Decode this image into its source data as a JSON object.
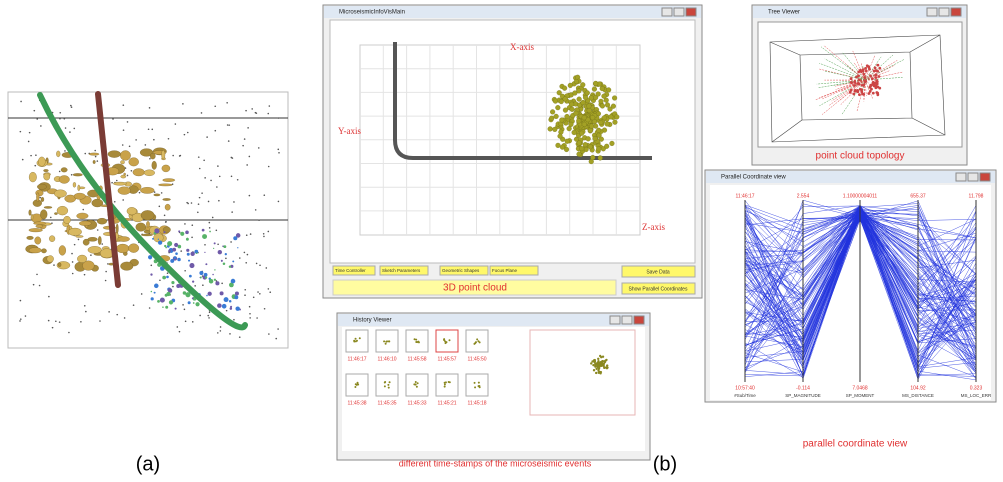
{
  "figure_labels": [
    "(a)",
    "(b)"
  ],
  "main_window": {
    "title": "MicroseismicInfoVisMain",
    "axis_labels": [
      "X-axis",
      "Y-axis",
      "Z-axis"
    ],
    "buttons": [
      "Time Controller",
      "Sketch Parameters",
      "Geometric Shapes",
      "Focus Plane"
    ],
    "right_buttons": [
      "Save Data",
      "Show Parallel Coordinates"
    ],
    "caption": "3D point cloud"
  },
  "tree_viewer": {
    "title": "Tree Viewer",
    "caption": "point cloud topology"
  },
  "parallel_view": {
    "title": "Parallel Coordinate view",
    "axes": [
      {
        "name": "#Sub/Time",
        "max": "11:46:17",
        "min": "10:57:40"
      },
      {
        "name": "SP_MAGNITUDE",
        "max": "2.554",
        "min": "-0.114"
      },
      {
        "name": "SP_MOMENT",
        "max": "1.10000004011",
        "min": "7.0468"
      },
      {
        "name": "MS_DISTANCE",
        "max": "655.37",
        "min": "104.92"
      },
      {
        "name": "MS_LOC_ERR",
        "max": "11.798",
        "min": "0.323"
      }
    ],
    "caption": "parallel coordinate view"
  },
  "history_viewer": {
    "title": "History Viewer",
    "timestamps": [
      "11:46:17",
      "11:46:10",
      "11:45:58",
      "11:45:57",
      "11:45:50",
      "11:45:38",
      "11:45:35",
      "11:45:33",
      "11:45:21",
      "11:45:18"
    ],
    "caption": "different time-stamps of the microseismic events"
  }
}
